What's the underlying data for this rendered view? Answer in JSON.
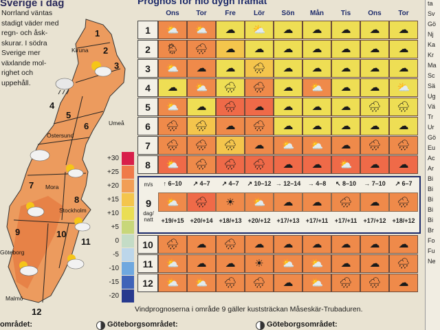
{
  "left": {
    "title": "Sverige i dag",
    "lines": [
      "Norrland väntas",
      "stadigt väder med",
      "regn- och åsk-",
      "skurar. I södra",
      "Sverige mer",
      "växlande mol-",
      "righet och",
      "uppehåll."
    ],
    "regions": [
      "1",
      "2",
      "3",
      "4",
      "5",
      "6",
      "7",
      "8",
      "9",
      "10",
      "11",
      "12"
    ],
    "cities": [
      "Kiruna",
      "Umeå",
      "Östersund",
      "Mora",
      "Stockholm",
      "Göteborg",
      "Malmö"
    ]
  },
  "legend": {
    "labels": [
      "+30",
      "+25",
      "+20",
      "+15",
      "+10",
      "+5",
      "0",
      "-5",
      "-10",
      "-15",
      "-20"
    ],
    "colors": [
      "#d81f4a",
      "#ef7a4a",
      "#f19e56",
      "#f4c54c",
      "#eade54",
      "#c8d77a",
      "#c4dcc6",
      "#bcd6ea",
      "#6fa8df",
      "#3f63b8",
      "#283a8e"
    ]
  },
  "forecast": {
    "title": "Prognos för nio dygn framåt",
    "days": [
      "Ons",
      "Tor",
      "Fre",
      "Lör",
      "Sön",
      "Mån",
      "Tis",
      "Ons",
      "Tor"
    ],
    "note": "Vindprognoserna i område 9 gäller kuststräckan Måseskär-Trubaduren."
  },
  "rows": [
    {
      "label": "1",
      "colors": [
        "#ef8a4a",
        "#ef8a4a",
        "#eede54",
        "#eede54",
        "#eede54",
        "#eede54",
        "#eede54",
        "#eede54",
        "#eede54"
      ],
      "icons": [
        "cloud-sun",
        "cloud-sun",
        "cloud",
        "cloud-sun",
        "cloud",
        "cloud",
        "cloud",
        "cloud",
        "cloud"
      ]
    },
    {
      "label": "2",
      "colors": [
        "#ef8a4a",
        "#ef8a4a",
        "#f4c54c",
        "#eede54",
        "#eede54",
        "#eede54",
        "#eede54",
        "#eede54",
        "#eede54"
      ],
      "icons": [
        "sun-rain",
        "cloud-rain",
        "cloud",
        "cloud",
        "cloud",
        "cloud",
        "cloud",
        "cloud",
        "cloud"
      ]
    },
    {
      "label": "3",
      "colors": [
        "#ef8a4a",
        "#ef8a4a",
        "#eede54",
        "#f4c54c",
        "#eede54",
        "#eede54",
        "#eede54",
        "#eede54",
        "#eede54"
      ],
      "icons": [
        "cloud-sun",
        "cloud",
        "cloud",
        "cloud-rain",
        "cloud",
        "cloud",
        "cloud",
        "cloud",
        "cloud"
      ]
    },
    {
      "label": "4",
      "colors": [
        "#eede54",
        "#ef8a4a",
        "#eede54",
        "#ef8a4a",
        "#eede54",
        "#ef8a4a",
        "#eede54",
        "#eede54",
        "#eede54"
      ],
      "icons": [
        "cloud",
        "cloud-sun",
        "cloud-rain",
        "cloud-rain",
        "cloud",
        "cloud-sun",
        "cloud",
        "cloud",
        "cloud-sun"
      ]
    },
    {
      "label": "5",
      "colors": [
        "#ef8a4a",
        "#eede54",
        "#ef6a48",
        "#ef6a48",
        "#eede54",
        "#eede54",
        "#eede54",
        "#eede54",
        "#eede54"
      ],
      "icons": [
        "cloud-sun",
        "cloud",
        "cloud-rain",
        "cloud",
        "cloud",
        "cloud",
        "cloud",
        "cloud-rain",
        "cloud-rain"
      ]
    },
    {
      "label": "6",
      "colors": [
        "#ef8a4a",
        "#f4c54c",
        "#ef8a4a",
        "#ef8a4a",
        "#eede54",
        "#eede54",
        "#eede54",
        "#eede54",
        "#eede54"
      ],
      "icons": [
        "cloud-rain",
        "cloud-rain",
        "cloud",
        "cloud-rain",
        "cloud",
        "cloud",
        "cloud",
        "cloud",
        "cloud"
      ]
    },
    {
      "label": "7",
      "colors": [
        "#ef8a4a",
        "#ef8a4a",
        "#f4c54c",
        "#ef8a4a",
        "#ef8a4a",
        "#ef8a4a",
        "#ef8a4a",
        "#ef8a4a",
        "#ef8a4a"
      ],
      "icons": [
        "cloud-rain",
        "cloud-rain",
        "cloud-rain",
        "cloud",
        "cloud-sun",
        "cloud-sun",
        "cloud",
        "cloud-rain",
        "cloud-rain"
      ]
    },
    {
      "label": "8",
      "colors": [
        "#ef6a48",
        "#ef8a4a",
        "#ef6a48",
        "#ef6a48",
        "#ef6a48",
        "#ef6a48",
        "#ef6a48",
        "#ef6a48",
        "#ef6a48"
      ],
      "icons": [
        "cloud-sun",
        "cloud-rain",
        "cloud-rain",
        "cloud-rain",
        "cloud",
        "cloud",
        "cloud-sun",
        "cloud",
        "cloud"
      ]
    },
    {
      "label": "10",
      "colors": [
        "#ef8a4a",
        "#ef8a4a",
        "#ef8a4a",
        "#ef8a4a",
        "#ef8a4a",
        "#ef8a4a",
        "#ef8a4a",
        "#ef8a4a",
        "#ef8a4a"
      ],
      "icons": [
        "cloud-rain",
        "cloud",
        "cloud-rain",
        "cloud",
        "cloud",
        "cloud",
        "cloud",
        "cloud",
        "cloud"
      ]
    },
    {
      "label": "11",
      "colors": [
        "#ef8a4a",
        "#ef8a4a",
        "#ef8a4a",
        "#ef8a4a",
        "#ef8a4a",
        "#ef8a4a",
        "#ef8a4a",
        "#ef8a4a",
        "#ef8a4a"
      ],
      "icons": [
        "cloud-sun",
        "cloud",
        "cloud",
        "sun",
        "cloud-sun",
        "cloud-sun",
        "cloud",
        "cloud",
        "cloud-rain"
      ]
    },
    {
      "label": "12",
      "colors": [
        "#ef8a4a",
        "#ef8a4a",
        "#ef8a4a",
        "#ef8a4a",
        "#ef8a4a",
        "#ef8a4a",
        "#ef8a4a",
        "#ef8a4a",
        "#ef8a4a"
      ],
      "icons": [
        "cloud-sun",
        "cloud-sun",
        "cloud-rain",
        "cloud-rain",
        "cloud",
        "cloud-sun",
        "cloud-rain",
        "cloud-rain",
        "cloud"
      ]
    }
  ],
  "area9": {
    "label": "9",
    "ms": "m/s",
    "daynight": [
      "dag/",
      "natt"
    ],
    "wind": [
      "↑ 6–10",
      "↗ 4–7",
      "↗ 4–7",
      "↗ 10–12",
      "→ 12–14",
      "→ 4–8",
      "↖ 8–10",
      "→ 7–10",
      "↗ 6–7"
    ],
    "colors": [
      "#ef8a4a",
      "#ef6a48",
      "#ef8a4a",
      "#ef8a4a",
      "#ef8a4a",
      "#ef8a4a",
      "#ef8a4a",
      "#ef8a4a",
      "#ef8a4a"
    ],
    "icons": [
      "cloud-sun",
      "cloud-rain",
      "sun",
      "cloud-sun",
      "cloud",
      "cloud",
      "cloud-rain",
      "cloud",
      "cloud-rain"
    ],
    "temps": [
      "+19/+15",
      "+20/+14",
      "+18/+13",
      "+20/+12",
      "+17/+13",
      "+17/+11",
      "+17/+11",
      "+17/+12",
      "+18/+12"
    ]
  },
  "right_strip": [
    "ta",
    "Sv",
    "Gö",
    "Nj",
    "Ka",
    "Kr",
    "Ma",
    "Sc",
    "Sä",
    "Ug",
    "Vä",
    "Tr",
    "Ur",
    "Gö",
    "Eu",
    "Ac",
    "Ar",
    "Bi",
    "Bi",
    "Bi",
    "Bi",
    "Bi",
    "Br",
    "Fo",
    "Fu",
    "Ne"
  ],
  "bottom": {
    "left": "området:",
    "center": "Göteborgsområdet:",
    "right": "Göteborgsområdet:"
  }
}
